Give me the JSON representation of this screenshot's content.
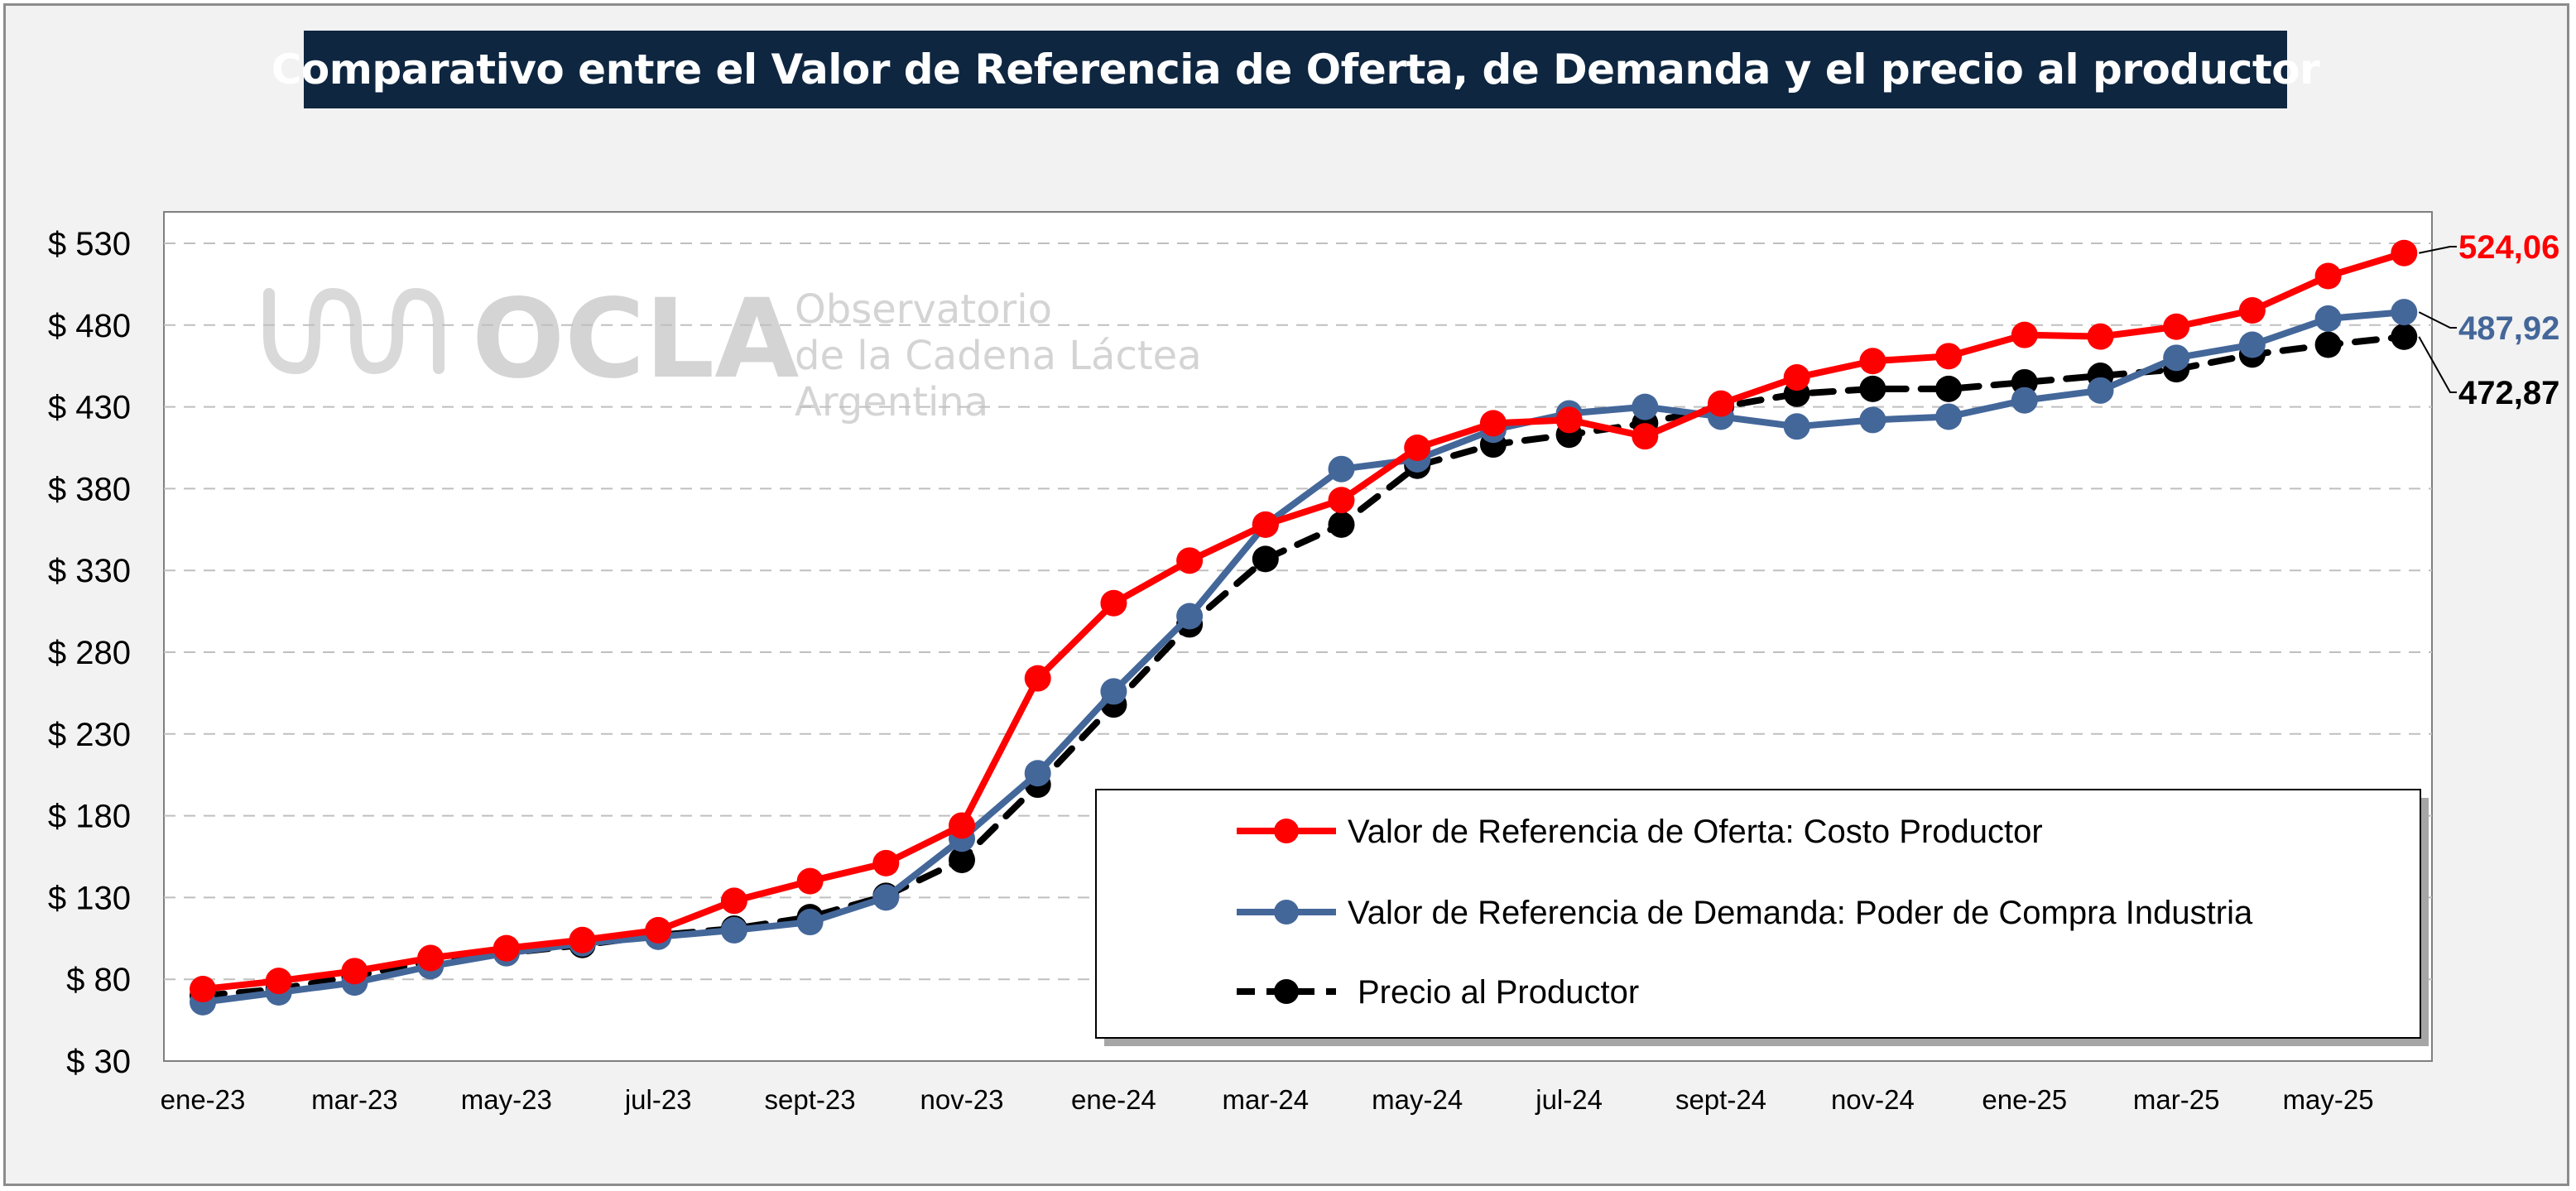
{
  "title": "Comparativo entre el Valor de Referencia de Oferta, de Demanda y el precio al productor",
  "watermark": {
    "logo_text": "OCLA",
    "lines": [
      "Observatorio",
      "de la Cadena Láctea",
      "Argentina"
    ]
  },
  "colors": {
    "oferta": "#ff0000",
    "demanda": "#44679a",
    "precio": "#000000",
    "title_bg": "#0e2640",
    "frame_bg": "#f2f2f2",
    "grid": "#bfbfbf"
  },
  "chart_data": {
    "type": "line",
    "title": "Comparativo entre el Valor de Referencia de Oferta, de Demanda y el precio al productor",
    "xlabel": "",
    "ylabel": "",
    "ylim": [
      30,
      550
    ],
    "y_ticks": [
      30,
      80,
      130,
      180,
      230,
      280,
      330,
      380,
      430,
      480,
      530
    ],
    "y_tick_labels": [
      "$ 30",
      "$ 80",
      "$ 130",
      "$ 180",
      "$ 230",
      "$ 280",
      "$ 330",
      "$ 380",
      "$ 430",
      "$ 480",
      "$ 530"
    ],
    "grid": true,
    "legend_position": "bottom-right inside plot",
    "x_tick_labels": [
      "ene-23",
      "mar-23",
      "may-23",
      "jul-23",
      "sept-23",
      "nov-23",
      "ene-24",
      "mar-24",
      "may-24",
      "jul-24",
      "sept-24",
      "nov-24",
      "ene-25",
      "mar-25",
      "may-25"
    ],
    "x_tick_every": 2,
    "series": [
      {
        "name": "Valor de Referencia de Oferta: Costo Productor",
        "key": "oferta",
        "style": "solid",
        "end_label": "524,06",
        "values": [
          74,
          79,
          85,
          93,
          99,
          104,
          110,
          128,
          140,
          151,
          174,
          264,
          310,
          336,
          358,
          373,
          405,
          420,
          422,
          412,
          432,
          448,
          458,
          461,
          474,
          473,
          479,
          489,
          510,
          524.06
        ]
      },
      {
        "name": "Valor de Referencia de Demanda: Poder de Compra Industria",
        "key": "demanda",
        "style": "solid",
        "end_label": "487,92",
        "values": [
          66,
          72,
          78,
          88,
          96,
          102,
          106,
          110,
          115,
          130,
          166,
          206,
          256,
          302,
          358,
          392,
          398,
          416,
          426,
          430,
          424,
          418,
          422,
          424,
          434,
          440,
          460,
          468,
          484,
          487.92
        ]
      },
      {
        "name": "Precio al Productor",
        "key": "precio",
        "style": "dashed",
        "end_label": "472,87",
        "values": [
          70,
          74,
          82,
          91,
          96,
          101,
          107,
          111,
          118,
          131,
          153,
          199,
          248,
          297,
          337,
          358,
          394,
          407,
          413,
          420,
          430,
          438,
          441,
          441,
          445,
          449,
          453,
          462,
          468,
          472.87
        ]
      }
    ]
  }
}
